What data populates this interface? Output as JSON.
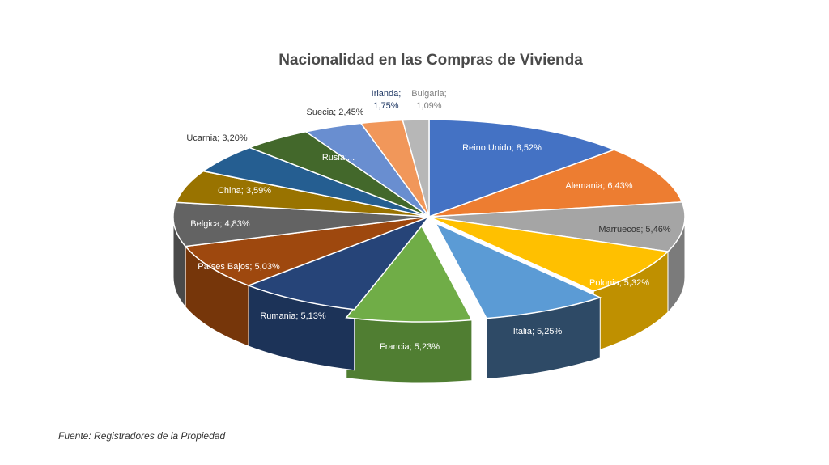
{
  "chart_data": {
    "type": "pie",
    "title": "Nacionalidad en las Compras de Vivienda",
    "source": "Fuente: Registradores de la Propiedad",
    "slices": [
      {
        "name": "Reino Unido",
        "value": 8.52,
        "label": "Reino Unido; 8,52%",
        "color": "#4472c4",
        "side": "#2f528f"
      },
      {
        "name": "Alemania",
        "value": 6.43,
        "label": "Alemania; 6,43%",
        "color": "#ed7d31",
        "side": "#ae5a21"
      },
      {
        "name": "Marruecos",
        "value": 5.46,
        "label": "Marruecos; 5,46%",
        "color": "#a5a5a5",
        "side": "#7b7b7b"
      },
      {
        "name": "Polonia",
        "value": 5.32,
        "label": "Polonia; 5,32%",
        "color": "#ffc000",
        "side": "#bf9000"
      },
      {
        "name": "Italia",
        "value": 5.25,
        "label": "Italia; 5,25%",
        "color": "#5b9bd5",
        "side": "#2e4a66"
      },
      {
        "name": "Francia",
        "value": 5.23,
        "label": "Francia; 5,23%",
        "color": "#70ad47",
        "side": "#507e32"
      },
      {
        "name": "Rumania",
        "value": 5.13,
        "label": "Rumania; 5,13%",
        "color": "#264478",
        "side": "#1c3358"
      },
      {
        "name": "Países Bajos",
        "value": 5.03,
        "label": "Países Bajos; 5,03%",
        "color": "#9e480e",
        "side": "#76360a"
      },
      {
        "name": "Belgica",
        "value": 4.83,
        "label": "Belgica; 4,83%",
        "color": "#636363",
        "side": "#4a4a4a"
      },
      {
        "name": "China",
        "value": 3.59,
        "label": "China; 3,59%",
        "color": "#997300",
        "side": "#735600"
      },
      {
        "name": "Ucarnia",
        "value": 3.2,
        "label": "Ucarnia; 3,20%",
        "color": "#255e91",
        "side": "#1b466c"
      },
      {
        "name": "Rusia",
        "value": 2.9,
        "label": "Rusia;...",
        "color": "#43682b",
        "side": "#324e20"
      },
      {
        "name": "Suecia",
        "value": 2.45,
        "label": "Suecia; 2,45%",
        "color": "#698ed0",
        "side": "#4f6a9c"
      },
      {
        "name": "Irlanda",
        "value": 1.75,
        "label": "Irlanda; 1,75%",
        "color": "#f1975a",
        "side": "#b57143"
      },
      {
        "name": "Bulgaria",
        "value": 1.09,
        "label": "Bulgaria; 1,09%",
        "color": "#b7b7b7",
        "side": "#898989"
      }
    ]
  }
}
